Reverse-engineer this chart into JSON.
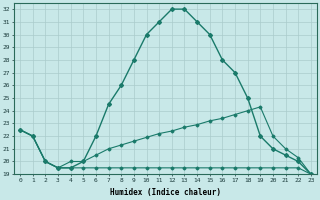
{
  "xlabel": "Humidex (Indice chaleur)",
  "ylabel": "",
  "bg_color": "#c8e8e8",
  "grid_color": "#aacccc",
  "line_color": "#1a7a6a",
  "xlim": [
    -0.5,
    23.5
  ],
  "ylim": [
    19,
    32.5
  ],
  "yticks": [
    19,
    20,
    21,
    22,
    23,
    24,
    25,
    26,
    27,
    28,
    29,
    30,
    31,
    32
  ],
  "xticks": [
    0,
    1,
    2,
    3,
    4,
    5,
    6,
    7,
    8,
    9,
    10,
    11,
    12,
    13,
    14,
    15,
    16,
    17,
    18,
    19,
    20,
    21,
    22,
    23
  ],
  "line1_x": [
    0,
    1,
    2,
    3,
    4,
    5,
    6,
    7,
    8,
    9,
    10,
    11,
    12,
    13,
    14,
    15,
    16,
    17,
    18,
    19,
    20,
    21,
    22,
    23
  ],
  "line1_y": [
    22.5,
    22.0,
    20.0,
    19.5,
    19.5,
    20.0,
    22.0,
    24.5,
    26.0,
    28.0,
    30.0,
    31.0,
    32.0,
    32.0,
    31.0,
    30.0,
    28.0,
    27.0,
    25.0,
    22.0,
    21.0,
    20.5,
    20.0,
    19.0
  ],
  "line2_x": [
    0,
    1,
    2,
    3,
    4,
    5,
    6,
    7,
    8,
    9,
    10,
    11,
    12,
    13,
    14,
    15,
    16,
    17,
    18,
    19,
    20,
    21,
    22,
    23
  ],
  "line2_y": [
    22.5,
    22.0,
    20.0,
    19.5,
    20.0,
    20.0,
    20.5,
    21.0,
    21.3,
    21.6,
    21.9,
    22.2,
    22.4,
    22.7,
    22.9,
    23.2,
    23.4,
    23.7,
    24.0,
    24.3,
    22.0,
    21.0,
    20.3,
    19.0
  ],
  "line3_x": [
    0,
    1,
    2,
    3,
    4,
    5,
    6,
    7,
    8,
    9,
    10,
    11,
    12,
    13,
    14,
    15,
    16,
    17,
    18,
    19,
    20,
    21,
    22,
    23
  ],
  "line3_y": [
    22.5,
    22.0,
    20.0,
    19.5,
    19.5,
    19.5,
    19.5,
    19.5,
    19.5,
    19.5,
    19.5,
    19.5,
    19.5,
    19.5,
    19.5,
    19.5,
    19.5,
    19.5,
    19.5,
    19.5,
    19.5,
    19.5,
    19.5,
    19.0
  ]
}
